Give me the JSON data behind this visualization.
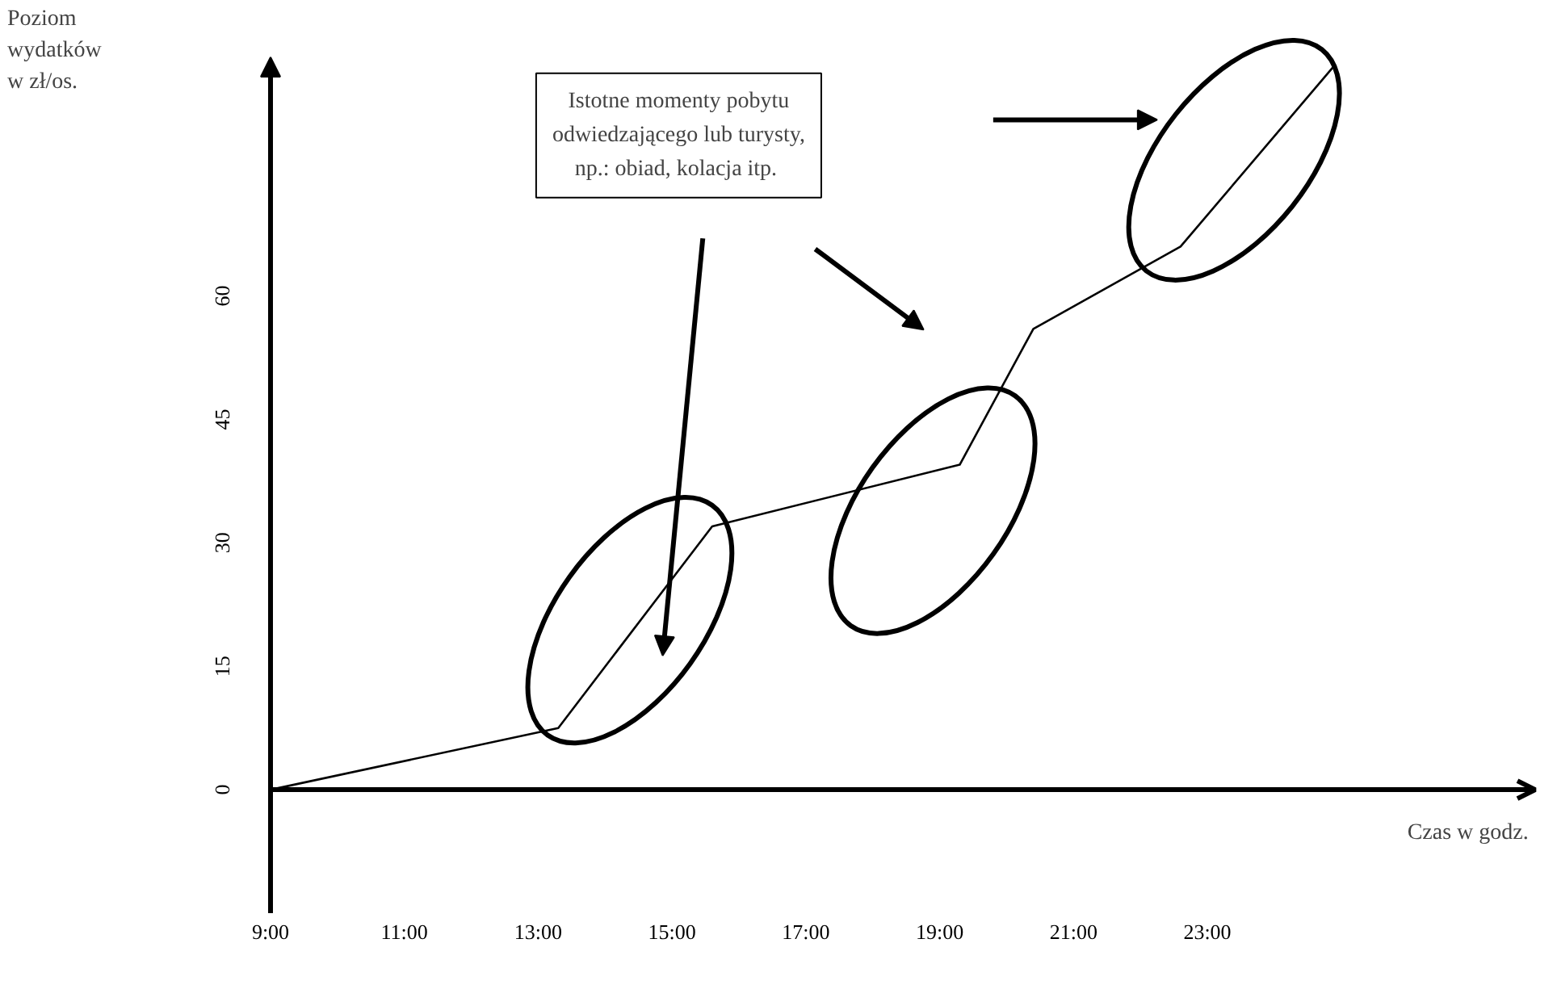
{
  "chart_data": {
    "type": "line",
    "xlabel": "Czas w godz.",
    "ylabel": "Poziom wydatków w zł/os.",
    "x": [
      9,
      13.3,
      15.6,
      19.3,
      20.4,
      22.6,
      24.9
    ],
    "series": [
      {
        "color": "#000000",
        "values": [
          0,
          7.5,
          32,
          39.5,
          56,
          66,
          88
        ]
      }
    ],
    "xlim": [
      9,
      27.9
    ],
    "ylim": [
      -15,
      89
    ],
    "xticks": [
      {
        "value": 9,
        "label": "9:00"
      },
      {
        "value": 11,
        "label": "11:00"
      },
      {
        "value": 13,
        "label": "13:00"
      },
      {
        "value": 15,
        "label": "15:00"
      },
      {
        "value": 17,
        "label": "17:00"
      },
      {
        "value": 19,
        "label": "19:00"
      },
      {
        "value": 21,
        "label": "21:00"
      },
      {
        "value": 23,
        "label": "23:00"
      }
    ],
    "yticks": [
      0,
      15,
      30,
      45,
      60
    ],
    "annotations": [
      "Istotne momenty pobytu\nodwiedzającego lub turysty,\nnp.: obiad, kolacja  itp."
    ],
    "ref_lines": [
      {
        "axis": "y",
        "value": 0,
        "line_style": "solid",
        "color": "#000000"
      }
    ],
    "grid": false,
    "marker": "none",
    "line_style": "solid"
  }
}
